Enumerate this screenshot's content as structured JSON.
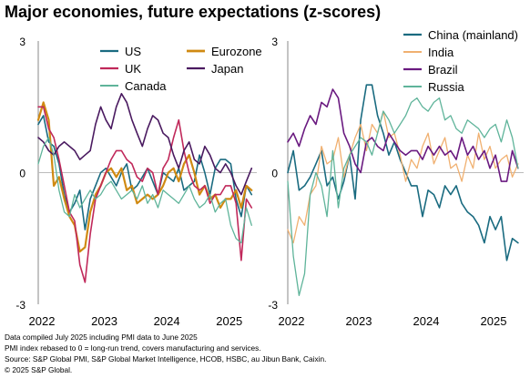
{
  "title": "Major economies, future expectations (z-scores)",
  "footnotes": [
    "Data compiled July 2025 including PMI data to June 2025",
    "PMI index rebased to 0 = long-run trend, covers manufacturing and services.",
    "Source: S&P Global PMI, S&P Global Market Intelligence, HCOB, HSBC, au Jibun Bank, Caixin.",
    "© 2025 S&P Global."
  ],
  "chart_data": [
    {
      "type": "line",
      "ylim": [
        -3,
        3
      ],
      "yticks": [
        "3",
        "0",
        "-3"
      ],
      "xlim": [
        2022.0,
        2025.5
      ],
      "xticks": [
        {
          "label": "2022",
          "value": 2022.0
        },
        {
          "label": "2023",
          "value": 2023.0
        },
        {
          "label": "2024",
          "value": 2024.0
        },
        {
          "label": "2025",
          "value": 2025.0
        }
      ],
      "x": [
        2022.0,
        2022.083,
        2022.167,
        2022.25,
        2022.333,
        2022.417,
        2022.5,
        2022.583,
        2022.667,
        2022.75,
        2022.833,
        2022.917,
        2023.0,
        2023.083,
        2023.167,
        2023.25,
        2023.333,
        2023.417,
        2023.5,
        2023.583,
        2023.667,
        2023.75,
        2023.833,
        2023.917,
        2024.0,
        2024.083,
        2024.167,
        2024.25,
        2024.333,
        2024.417,
        2024.5,
        2024.583,
        2024.667,
        2024.75,
        2024.833,
        2024.917,
        2025.0,
        2025.083,
        2025.167,
        2025.25,
        2025.333,
        2025.417
      ],
      "series": [
        {
          "name": "US",
          "color": "#1a6b80",
          "width": 1.6,
          "values": [
            1.1,
            1.3,
            0.7,
            0.6,
            0.2,
            -0.5,
            -0.9,
            -0.7,
            -0.4,
            -1.3,
            -0.6,
            -0.3,
            0.0,
            0.1,
            -0.1,
            -0.3,
            0.0,
            0.2,
            -0.4,
            -0.3,
            -0.1,
            0.1,
            -0.2,
            -0.5,
            0.0,
            -0.1,
            -0.2,
            0.1,
            -0.4,
            -0.3,
            -0.2,
            0.4,
            0.0,
            -0.5,
            0.1,
            0.3,
            0.3,
            0.2,
            -0.6,
            -1.0,
            -0.3,
            -0.5
          ]
        },
        {
          "name": "Eurozone",
          "color": "#d08a12",
          "width": 2.2,
          "values": [
            1.2,
            1.6,
            1.2,
            -0.3,
            -0.1,
            -0.6,
            -1.0,
            -1.2,
            -1.8,
            -1.7,
            -0.9,
            -0.5,
            -0.3,
            0.0,
            0.1,
            -0.1,
            0.1,
            -0.4,
            -0.3,
            -0.7,
            -0.6,
            -0.5,
            -0.6,
            -0.5,
            -0.3,
            0.0,
            0.1,
            -0.2,
            0.2,
            0.4,
            0.0,
            -0.5,
            -0.3,
            -0.6,
            -0.5,
            -0.8,
            -0.6,
            -0.6,
            -0.4,
            -0.8,
            -0.3,
            -0.4
          ]
        },
        {
          "name": "UK",
          "color": "#c0285a",
          "width": 1.6,
          "values": [
            1.5,
            1.5,
            1.0,
            0.8,
            0.3,
            -0.3,
            -0.9,
            -1.1,
            -2.1,
            -2.5,
            -1.4,
            -0.6,
            -0.3,
            0.0,
            0.3,
            0.5,
            0.5,
            0.3,
            0.2,
            -0.1,
            -0.2,
            0.1,
            0.0,
            -0.5,
            0.1,
            0.3,
            0.8,
            1.2,
            0.5,
            0.0,
            -0.3,
            -0.4,
            -0.3,
            -0.7,
            -0.5,
            -0.5,
            -0.3,
            -0.3,
            -0.7,
            -2.0,
            -0.6,
            -0.8
          ]
        },
        {
          "name": "Japan",
          "color": "#4a1a60",
          "width": 1.6,
          "values": [
            0.8,
            0.7,
            0.5,
            0.4,
            0.6,
            0.7,
            0.6,
            0.5,
            0.3,
            0.4,
            0.5,
            1.1,
            1.5,
            1.2,
            1.0,
            1.5,
            1.8,
            1.6,
            1.2,
            0.9,
            0.6,
            1.0,
            1.3,
            1.2,
            0.9,
            0.8,
            0.4,
            0.1,
            0.5,
            0.7,
            0.3,
            0.2,
            0.6,
            0.4,
            0.1,
            0.0,
            0.2,
            0.0,
            -0.3,
            -0.5,
            -0.2,
            0.1
          ]
        },
        {
          "name": "Canada",
          "color": "#5fb49a",
          "width": 1.3,
          "values": [
            0.2,
            0.6,
            0.8,
            0.4,
            -0.4,
            -0.9,
            -1.0,
            -0.5,
            -0.8,
            -0.6,
            -0.4,
            -0.6,
            -0.5,
            -0.3,
            -0.2,
            -0.4,
            -0.6,
            -0.5,
            -0.4,
            -0.6,
            -0.3,
            -0.7,
            -0.5,
            -0.8,
            -0.4,
            -0.5,
            -0.6,
            -0.7,
            -0.5,
            -0.3,
            -0.6,
            -0.8,
            -0.7,
            -0.5,
            -0.9,
            -0.7,
            -0.6,
            -1.2,
            -1.5,
            -1.6,
            -0.8,
            -1.2
          ]
        }
      ],
      "legend": {
        "placement": "top",
        "columns": [
          [
            "US",
            "UK",
            "Canada"
          ],
          [
            "Eurozone",
            "Japan"
          ]
        ]
      }
    },
    {
      "type": "line",
      "ylim": [
        -3,
        3
      ],
      "yticks": [
        "3",
        "0",
        "-3"
      ],
      "xlim": [
        2022.0,
        2025.5
      ],
      "xticks": [
        {
          "label": "2022",
          "value": 2022.0
        },
        {
          "label": "2023",
          "value": 2023.0
        },
        {
          "label": "2024",
          "value": 2024.0
        },
        {
          "label": "2025",
          "value": 2025.0
        }
      ],
      "x": [
        2022.0,
        2022.083,
        2022.167,
        2022.25,
        2022.333,
        2022.417,
        2022.5,
        2022.583,
        2022.667,
        2022.75,
        2022.833,
        2022.917,
        2023.0,
        2023.083,
        2023.167,
        2023.25,
        2023.333,
        2023.417,
        2023.5,
        2023.583,
        2023.667,
        2023.75,
        2023.833,
        2023.917,
        2024.0,
        2024.083,
        2024.167,
        2024.25,
        2024.333,
        2024.417,
        2024.5,
        2024.583,
        2024.667,
        2024.75,
        2024.833,
        2024.917,
        2025.0,
        2025.083,
        2025.167,
        2025.25,
        2025.333,
        2025.417
      ],
      "series": [
        {
          "name": "China (mainland)",
          "color": "#1a6b80",
          "width": 1.6,
          "values": [
            0.0,
            0.5,
            -0.4,
            -0.3,
            -0.1,
            0.2,
            0.5,
            -0.3,
            -0.1,
            -0.6,
            -0.2,
            0.4,
            -0.6,
            1.2,
            2.0,
            2.0,
            1.3,
            0.9,
            0.4,
            0.7,
            0.3,
            0.0,
            -0.3,
            -0.3,
            -1.0,
            -0.4,
            -0.5,
            -0.8,
            -0.3,
            -0.5,
            -0.3,
            -0.7,
            -0.9,
            -1.0,
            -1.2,
            -1.6,
            -1.0,
            -1.3,
            -1.0,
            -2.0,
            -1.5,
            -1.6
          ]
        },
        {
          "name": "India",
          "color": "#f0b070",
          "width": 1.3,
          "values": [
            -1.3,
            -1.6,
            -1.0,
            -1.2,
            -0.5,
            -0.3,
            0.6,
            0.2,
            0.3,
            0.8,
            -0.1,
            0.4,
            0.8,
            1.1,
            0.5,
            1.1,
            0.9,
            1.4,
            0.8,
            0.9,
            0.4,
            -0.2,
            0.3,
            0.1,
            0.6,
            0.9,
            0.2,
            0.5,
            0.8,
            0.1,
            0.2,
            -0.2,
            0.4,
            0.1,
            0.9,
            0.3,
            0.6,
            0.1,
            0.3,
            0.4,
            -0.1,
            0.2
          ]
        },
        {
          "name": "Brazil",
          "color": "#6a1a80",
          "width": 1.6,
          "values": [
            0.7,
            0.9,
            0.6,
            1.0,
            1.3,
            1.1,
            1.6,
            1.5,
            1.9,
            1.7,
            0.9,
            0.6,
            0.2,
            0.0,
            0.7,
            0.8,
            0.6,
            0.5,
            0.9,
            0.7,
            0.5,
            0.4,
            0.5,
            0.5,
            0.3,
            0.6,
            0.4,
            0.6,
            0.4,
            0.5,
            0.3,
            0.8,
            0.4,
            0.6,
            0.3,
            0.5,
            0.1,
            0.4,
            -0.2,
            -0.2,
            0.5,
            0.1
          ]
        },
        {
          "name": "Russia",
          "color": "#5fb49a",
          "width": 1.3,
          "values": [
            -0.2,
            -1.9,
            -2.8,
            -2.3,
            -0.5,
            0.0,
            -0.3,
            -1.0,
            0.5,
            -0.8,
            0.1,
            0.4,
            0.6,
            0.8,
            0.7,
            0.4,
            0.9,
            1.4,
            1.2,
            0.9,
            1.1,
            1.3,
            1.6,
            1.7,
            1.5,
            1.4,
            1.6,
            1.7,
            1.2,
            1.3,
            1.0,
            0.9,
            1.2,
            1.1,
            1.0,
            0.8,
            1.0,
            1.1,
            0.7,
            1.2,
            0.8,
            0.1
          ]
        }
      ],
      "legend": {
        "placement": "top",
        "columns": [
          [
            "China (mainland)",
            "India",
            "Brazil",
            "Russia"
          ]
        ]
      }
    }
  ]
}
